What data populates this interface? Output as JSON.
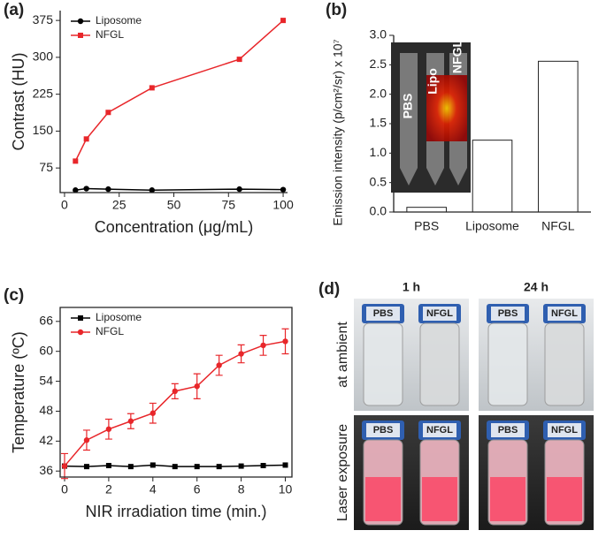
{
  "panel_labels": [
    "(a)",
    "(b)",
    "(c)",
    "(d)"
  ],
  "chart_data": [
    {
      "type": "line",
      "x_label": "Concentration (μg/mL)",
      "y_label": "Contrast (HU)",
      "x": [
        5,
        10,
        20,
        40,
        80,
        100
      ],
      "series": [
        {
          "name": "Liposome",
          "color": "#000000",
          "marker": "circle",
          "values": [
            30,
            33,
            32,
            30,
            32,
            31
          ]
        },
        {
          "name": "NFGL",
          "color": "#e8262a",
          "marker": "square",
          "values": [
            89,
            134,
            188,
            238,
            296,
            375
          ]
        }
      ],
      "xlim": [
        -2,
        102
      ],
      "xticks": [
        0,
        25,
        50,
        75,
        100
      ],
      "ylim": [
        25,
        395
      ],
      "yticks": [
        75,
        150,
        225,
        300,
        375
      ],
      "legend": "upper left"
    },
    {
      "type": "bar",
      "y_label": "Emission intensity (p/cm²/sr) x 10⁷",
      "categories": [
        "PBS",
        "Liposome",
        "NFGL"
      ],
      "values": [
        0.08,
        1.22,
        2.56
      ],
      "color": "#ffffff",
      "ylim": [
        0,
        3.0
      ],
      "yticks": [
        {
          "value": 0,
          "label": "0.0"
        },
        0.5,
        {
          "value": 1,
          "label": "1.0"
        },
        1.5,
        {
          "value": 2,
          "label": "2.0"
        },
        2.5,
        {
          "value": 3,
          "label": "3.0"
        }
      ],
      "inset_labels": [
        "PBS",
        "Lipo",
        "NFGL"
      ]
    },
    {
      "type": "line",
      "x_label": "NIR irradiation time (min.)",
      "y_label": "Temperature (ºC)",
      "x": [
        0,
        1,
        2,
        3,
        4,
        5,
        6,
        7,
        8,
        9,
        10
      ],
      "series": [
        {
          "name": "Liposome",
          "color": "#000000",
          "marker": "square",
          "values": [
            37,
            36.9,
            37.1,
            36.9,
            37.2,
            36.9,
            36.9,
            36.9,
            37,
            37.1,
            37.2
          ]
        },
        {
          "name": "NFGL",
          "color": "#e8262a",
          "marker": "circle",
          "values": [
            37,
            42.2,
            44.4,
            46,
            47.6,
            52,
            53,
            57.2,
            59.5,
            61.2,
            62
          ],
          "errors": [
            2.5,
            2,
            2,
            1.5,
            2,
            1.5,
            2.5,
            2,
            1.8,
            2,
            2.5
          ]
        }
      ],
      "xlim": [
        -0.2,
        10.3
      ],
      "xticks": [
        0,
        2,
        4,
        6,
        8,
        10
      ],
      "ylim": [
        34.8,
        68.8
      ],
      "yticks": [
        36,
        42,
        48,
        54,
        60,
        66
      ],
      "legend": "upper left"
    }
  ],
  "photo_panel": {
    "columns": [
      "1 h",
      "24 h"
    ],
    "rows": [
      "at ambient",
      "Laser exposure"
    ],
    "vial_labels": [
      "PBS",
      "NFGL"
    ]
  }
}
